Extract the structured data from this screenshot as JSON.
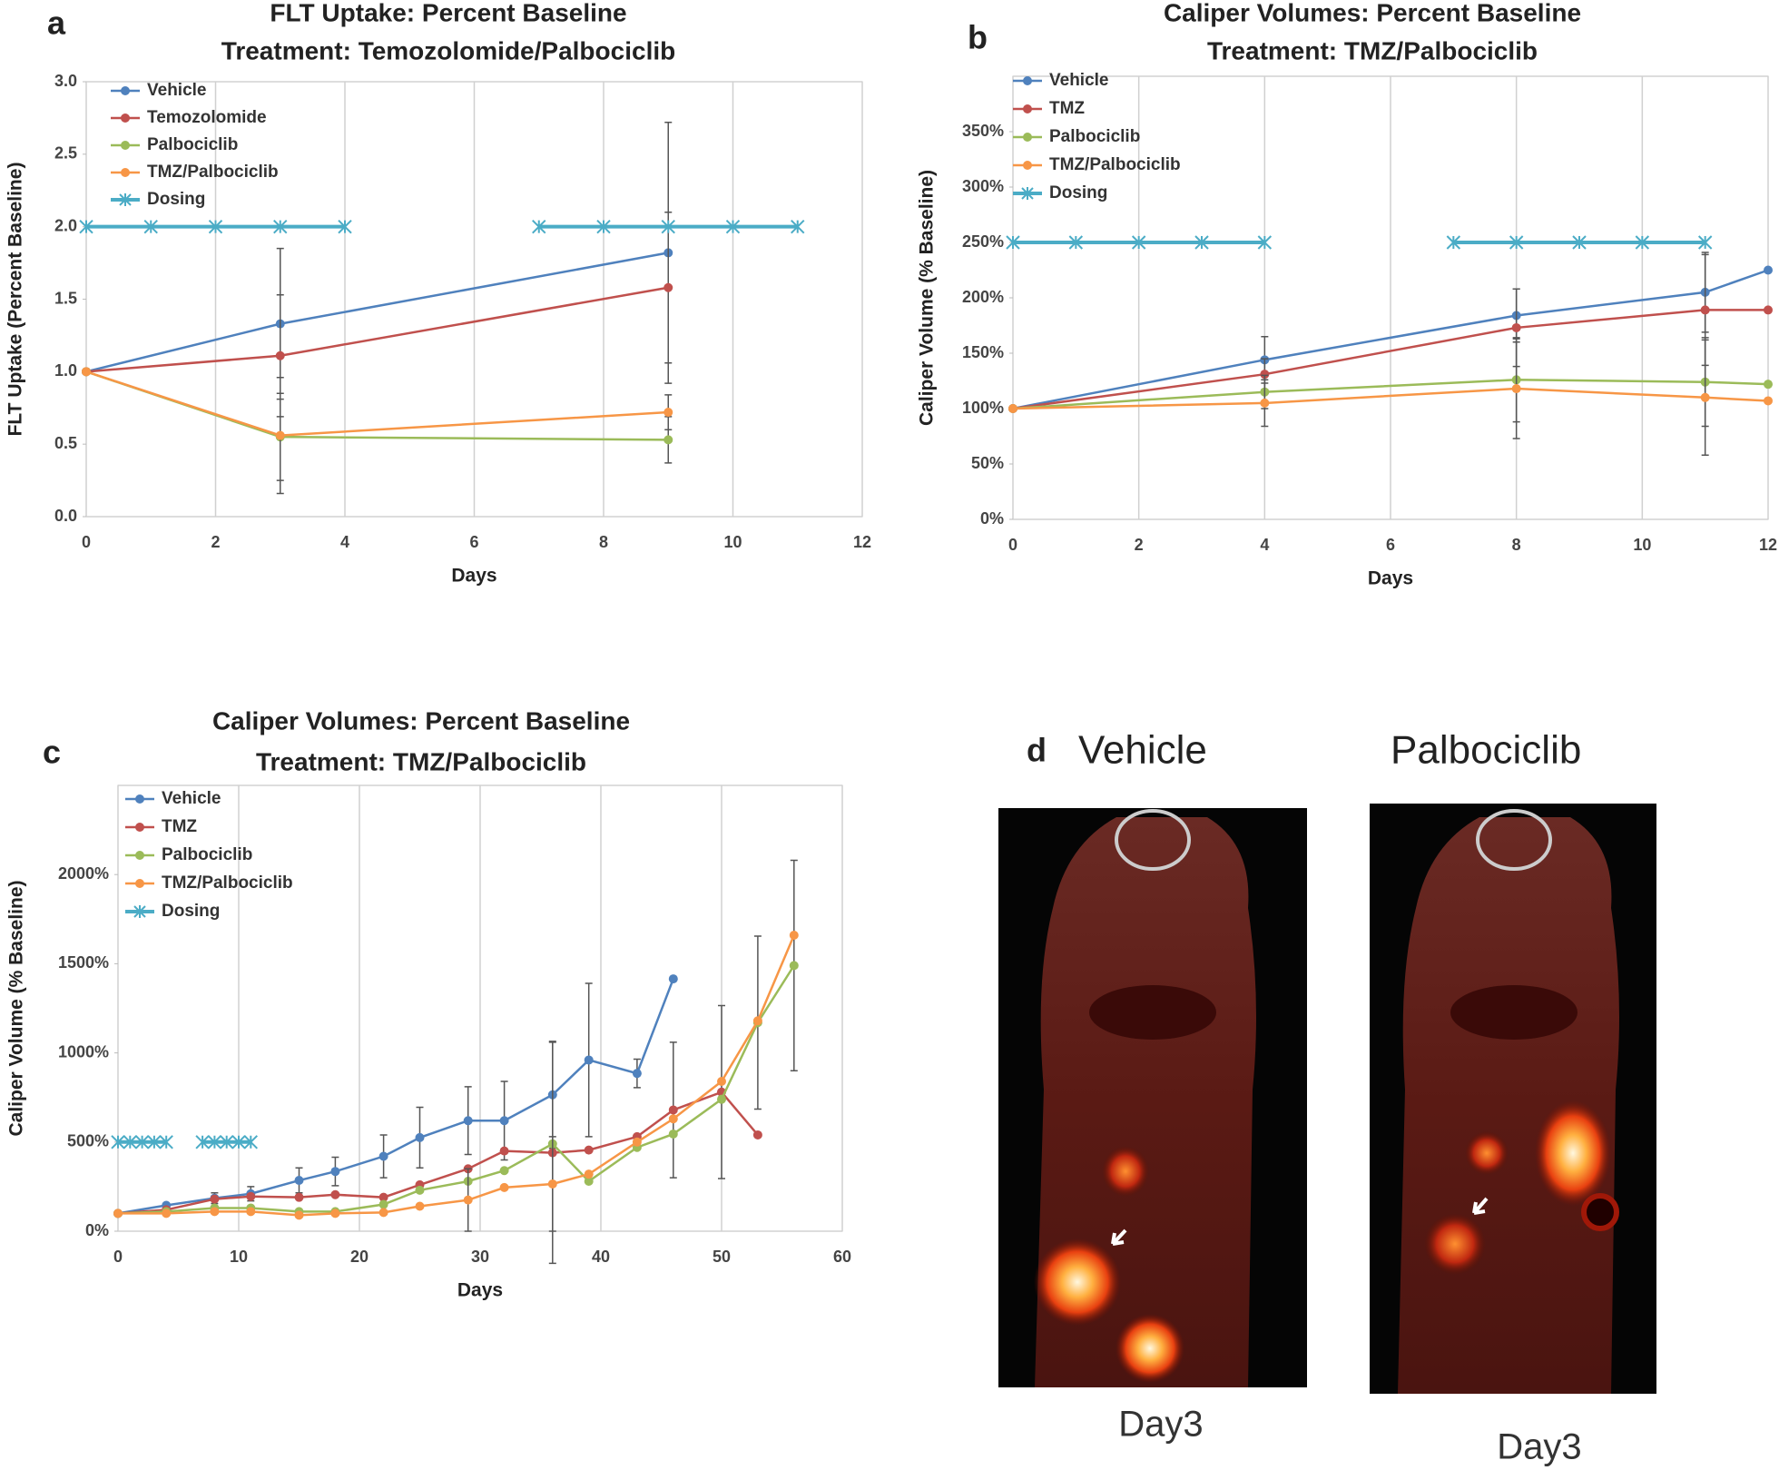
{
  "chart_data": [
    {
      "type": "line",
      "panel_label": "a",
      "title": "FLT Uptake: Percent Baseline",
      "subtitle": "Treatment: Temozolomide/Palbociclib",
      "x_label": "Days",
      "y_label": "FLT Uptake (Percent Baseline)",
      "xlim": [
        0,
        12
      ],
      "xticks": [
        0,
        2,
        4,
        6,
        8,
        10,
        12
      ],
      "ylim": [
        0,
        3
      ],
      "yticks": [
        {
          "value": 0,
          "label": "0.0"
        },
        0.5,
        {
          "value": 1,
          "label": "1.0"
        },
        1.5,
        {
          "value": 2,
          "label": "2.0"
        },
        2.5,
        {
          "value": 3,
          "label": "3.0"
        }
      ],
      "grid": "x",
      "legend": "top-left",
      "series": [
        {
          "name": "Vehicle",
          "color": "#4f81bd",
          "x": [
            0,
            3,
            9
          ],
          "values": [
            1.0,
            1.33,
            1.82
          ],
          "errors": [
            null,
            0.52,
            0.9
          ]
        },
        {
          "name": "Temozolomide",
          "color": "#c0504d",
          "x": [
            0,
            3,
            9
          ],
          "values": [
            1.0,
            1.11,
            1.58
          ],
          "errors": [
            null,
            0.42,
            0.52
          ]
        },
        {
          "name": "Palbociclib",
          "color": "#9bbb59",
          "x": [
            0,
            3,
            9
          ],
          "values": [
            1.0,
            0.55,
            0.53
          ],
          "errors": [
            null,
            0.3,
            0.16
          ]
        },
        {
          "name": "TMZ/Palbociclib",
          "color": "#f79646",
          "x": [
            0,
            3,
            9
          ],
          "values": [
            1.0,
            0.56,
            0.72
          ],
          "errors": [
            null,
            0.4,
            0.12
          ]
        },
        {
          "name": "Dosing",
          "color": "#4bacc6",
          "marker": "asterisk",
          "x": [
            0,
            1,
            2,
            3,
            4,
            null,
            7,
            8,
            9,
            10,
            11
          ],
          "values": [
            2,
            2,
            2,
            2,
            2,
            null,
            2,
            2,
            2,
            2,
            2
          ]
        }
      ]
    },
    {
      "type": "line",
      "panel_label": "b",
      "title": "Caliper Volumes: Percent Baseline",
      "subtitle": "Treatment: TMZ/Palbociclib",
      "x_label": "Days",
      "y_label": "Caliper Volume (% Baseline)",
      "xlim": [
        0,
        12
      ],
      "xticks": [
        0,
        2,
        4,
        6,
        8,
        10,
        12
      ],
      "ylim": [
        0,
        400
      ],
      "yticks": [
        {
          "value": 0,
          "label": "0%"
        },
        {
          "value": 50,
          "label": "50%"
        },
        {
          "value": 100,
          "label": "100%"
        },
        {
          "value": 150,
          "label": "150%"
        },
        {
          "value": 200,
          "label": "200%"
        },
        {
          "value": 250,
          "label": "250%"
        },
        {
          "value": 300,
          "label": "300%"
        },
        {
          "value": 350,
          "label": "350%"
        }
      ],
      "grid": "x",
      "legend": "top-left",
      "series": [
        {
          "name": "Vehicle",
          "color": "#4f81bd",
          "x": [
            0,
            4,
            8,
            11,
            12
          ],
          "values": [
            100,
            144,
            184,
            205,
            225
          ],
          "errors": [
            null,
            21,
            24,
            36,
            null
          ]
        },
        {
          "name": "TMZ",
          "color": "#c0504d",
          "x": [
            0,
            4,
            8,
            11,
            12
          ],
          "values": [
            100,
            131,
            173,
            189,
            189
          ],
          "errors": [
            null,
            14,
            35,
            50,
            null
          ]
        },
        {
          "name": "Palbociclib",
          "color": "#9bbb59",
          "x": [
            0,
            4,
            8,
            11,
            12
          ],
          "values": [
            100,
            115,
            126,
            124,
            122
          ],
          "errors": [
            null,
            15,
            38,
            40,
            null
          ]
        },
        {
          "name": "TMZ/Palbociclib",
          "color": "#f79646",
          "x": [
            0,
            4,
            8,
            11,
            12
          ],
          "values": [
            100,
            105,
            118,
            110,
            107
          ],
          "errors": [
            null,
            21,
            45,
            52,
            null
          ]
        },
        {
          "name": "Dosing",
          "color": "#4bacc6",
          "marker": "asterisk",
          "x": [
            0,
            1,
            2,
            3,
            4,
            null,
            7,
            8,
            9,
            10,
            11
          ],
          "values": [
            250,
            250,
            250,
            250,
            250,
            null,
            250,
            250,
            250,
            250,
            250
          ]
        }
      ]
    },
    {
      "type": "line",
      "panel_label": "c",
      "title": "Caliper Volumes: Percent Baseline",
      "subtitle": "Treatment: TMZ/Palbociclib",
      "x_label": "Days",
      "y_label": "Caliper Volume (% Baseline)",
      "xlim": [
        0,
        60
      ],
      "xticks": [
        0,
        10,
        20,
        30,
        40,
        50,
        60
      ],
      "ylim": [
        0,
        2500
      ],
      "yticks": [
        {
          "value": 0,
          "label": "0%"
        },
        {
          "value": 500,
          "label": "500%"
        },
        {
          "value": 1000,
          "label": "1000%"
        },
        {
          "value": 1500,
          "label": "1500%"
        },
        {
          "value": 2000,
          "label": "2000%"
        }
      ],
      "grid": "x",
      "legend": "top-left",
      "series": [
        {
          "name": "Vehicle",
          "color": "#4f81bd",
          "x": [
            0,
            4,
            8,
            11,
            15,
            18,
            22,
            25,
            29,
            32,
            36,
            39,
            43,
            46
          ],
          "values": [
            100,
            145,
            185,
            210,
            285,
            335,
            420,
            525,
            620,
            620,
            765,
            960,
            885,
            1415
          ],
          "errors": [
            null,
            null,
            30,
            40,
            70,
            80,
            120,
            170,
            190,
            220,
            300,
            430,
            80,
            null
          ]
        },
        {
          "name": "TMZ",
          "color": "#c0504d",
          "x": [
            0,
            4,
            8,
            11,
            15,
            18,
            22,
            25,
            29,
            32,
            36,
            39,
            43,
            46,
            50,
            53
          ],
          "values": [
            100,
            120,
            180,
            195,
            190,
            205,
            190,
            260,
            350,
            450,
            440,
            455,
            530,
            680,
            780,
            540
          ],
          "errors": [
            null,
            null,
            null,
            null,
            null,
            null,
            null,
            null,
            null,
            null,
            620,
            null,
            null,
            380,
            485,
            null
          ]
        },
        {
          "name": "Palbociclib",
          "color": "#9bbb59",
          "x": [
            0,
            4,
            8,
            11,
            15,
            18,
            22,
            25,
            29,
            32,
            36,
            39,
            43,
            46,
            50,
            53,
            56
          ],
          "values": [
            100,
            110,
            130,
            130,
            110,
            110,
            150,
            230,
            280,
            340,
            490,
            280,
            470,
            545,
            740,
            1170,
            1490
          ],
          "errors": [
            null,
            null,
            null,
            null,
            null,
            null,
            null,
            null,
            null,
            null,
            null,
            null,
            null,
            null,
            null,
            485,
            590
          ]
        },
        {
          "name": "TMZ/Palbociclib",
          "color": "#f79646",
          "x": [
            0,
            4,
            8,
            11,
            15,
            18,
            22,
            25,
            29,
            32,
            36,
            39,
            43,
            46,
            50,
            53,
            56
          ],
          "values": [
            100,
            100,
            110,
            110,
            90,
            100,
            105,
            140,
            175,
            245,
            265,
            320,
            500,
            630,
            840,
            1180,
            1660
          ],
          "errors": [
            null,
            null,
            null,
            null,
            null,
            null,
            null,
            null,
            175,
            null,
            265,
            null,
            null,
            null,
            null,
            null,
            null
          ]
        },
        {
          "name": "Dosing",
          "color": "#4bacc6",
          "marker": "asterisk",
          "x": [
            0,
            1,
            2,
            3,
            4,
            null,
            7,
            8,
            9,
            10,
            11
          ],
          "values": [
            500,
            500,
            500,
            500,
            500,
            null,
            500,
            500,
            500,
            500,
            500
          ]
        }
      ]
    }
  ],
  "image_panel": {
    "label": "d",
    "captions": [
      "Vehicle",
      "Palbociclib"
    ],
    "footers": [
      "Day3",
      "Day3"
    ]
  }
}
